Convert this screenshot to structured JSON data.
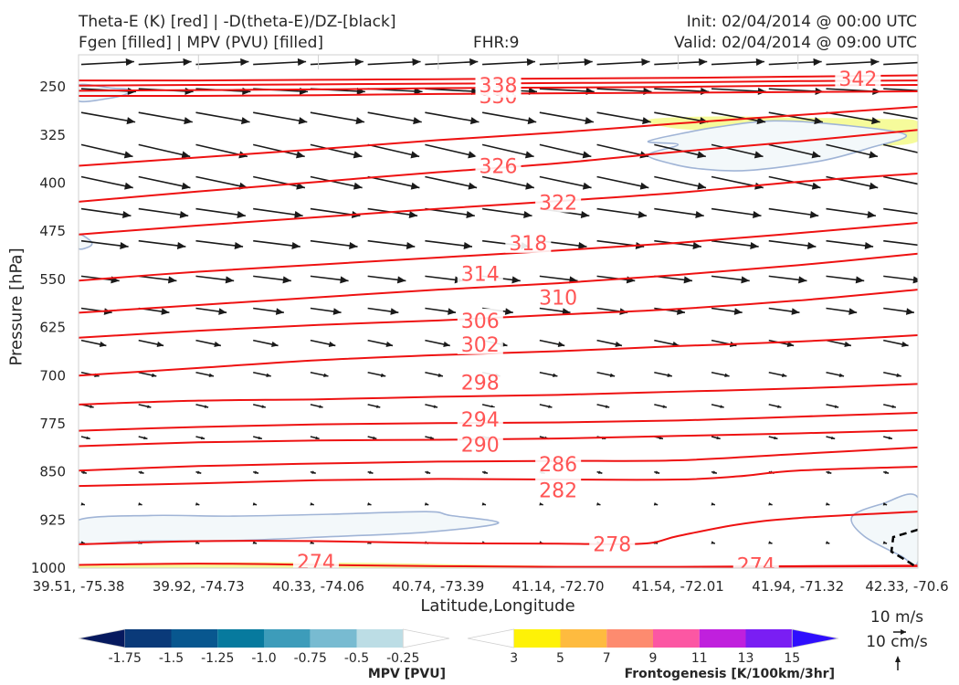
{
  "header": {
    "title_left_1": "Theta-E (K) [red] | -D(theta-E)/DZ-[black]",
    "title_left_2": "Fgen [filled] | MPV (PVU) [filled]",
    "fhr": "FHR:9",
    "init": "Init: 02/04/2014 @ 00:00 UTC",
    "valid": "Valid: 02/04/2014 @ 09:00 UTC"
  },
  "colors": {
    "theta_e": "#ee1111",
    "theta_e_label": "#ff5555",
    "vectors": "#1a1a1a",
    "mpv_outline": "#a0b4d6",
    "mpv_fill": "#f3f8fa"
  },
  "chart_data": {
    "type": "cross-section",
    "xlabel": "Latitude,Longitude",
    "ylabel": "Pressure [hPa]",
    "x_ticks": [
      "39.51, -75.38",
      "39.92, -74.73",
      "40.33, -74.06",
      "40.74, -73.39",
      "41.14, -72.70",
      "41.54, -72.01",
      "41.94, -71.32",
      "42.33, -70.6"
    ],
    "y_ticks": [
      250,
      325,
      400,
      475,
      550,
      625,
      700,
      775,
      850,
      925,
      1000
    ],
    "ylim": [
      1000,
      200
    ],
    "theta_e_contours": [
      {
        "level": "274",
        "points": [
          [
            0,
            995
          ],
          [
            1,
            993
          ],
          [
            2,
            995
          ],
          [
            3,
            997
          ],
          [
            4,
            998
          ],
          [
            5,
            998
          ],
          [
            6,
            997
          ],
          [
            7,
            996
          ]
        ],
        "label_x": 1.98,
        "label_y": 990
      },
      {
        "level": "274",
        "points": [
          [
            5.2,
            998
          ],
          [
            7,
            997
          ]
        ],
        "label_x": 5.65,
        "label_y": 995
      },
      {
        "level": "278",
        "points": [
          [
            0,
            963
          ],
          [
            1,
            958
          ],
          [
            2,
            958
          ],
          [
            3,
            961
          ],
          [
            4,
            962
          ],
          [
            4.7,
            962
          ],
          [
            5,
            950
          ],
          [
            5.5,
            932
          ],
          [
            6,
            922
          ],
          [
            7,
            912
          ]
        ],
        "label_x": 4.45,
        "label_y": 962
      },
      {
        "level": "282",
        "points": [
          [
            0,
            872
          ],
          [
            1,
            868
          ],
          [
            2,
            863
          ],
          [
            3,
            861
          ],
          [
            4,
            862
          ],
          [
            5,
            862
          ],
          [
            5.5,
            857
          ],
          [
            6,
            848
          ],
          [
            7,
            842
          ]
        ],
        "label_x": 4.0,
        "label_y": 878
      },
      {
        "level": "286",
        "points": [
          [
            0,
            848
          ],
          [
            1,
            841
          ],
          [
            2,
            837
          ],
          [
            3,
            834
          ],
          [
            4,
            833
          ],
          [
            5,
            832
          ],
          [
            6,
            822
          ],
          [
            7,
            812
          ]
        ],
        "label_x": 4.0,
        "label_y": 838
      },
      {
        "level": "290",
        "points": [
          [
            0,
            810
          ],
          [
            1,
            804
          ],
          [
            2,
            801
          ],
          [
            3,
            800
          ],
          [
            4,
            798
          ],
          [
            5,
            794
          ],
          [
            6,
            790
          ],
          [
            7,
            785
          ]
        ],
        "label_x": 3.35,
        "label_y": 807
      },
      {
        "level": "294",
        "points": [
          [
            0,
            786
          ],
          [
            1,
            780
          ],
          [
            2,
            776
          ],
          [
            3,
            774
          ],
          [
            4,
            773
          ],
          [
            5,
            770
          ],
          [
            6,
            764
          ],
          [
            7,
            758
          ]
        ],
        "label_x": 3.35,
        "label_y": 768
      },
      {
        "level": "298",
        "points": [
          [
            0,
            745
          ],
          [
            1,
            739
          ],
          [
            2,
            737
          ],
          [
            3,
            733
          ],
          [
            4,
            730
          ],
          [
            5,
            725
          ],
          [
            6,
            720
          ],
          [
            7,
            713
          ]
        ],
        "label_x": 3.35,
        "label_y": 710
      },
      {
        "level": "302",
        "points": [
          [
            0,
            700
          ],
          [
            1,
            688
          ],
          [
            2,
            676
          ],
          [
            3,
            668
          ],
          [
            4,
            662
          ],
          [
            5,
            654
          ],
          [
            6,
            647
          ],
          [
            7,
            637
          ]
        ],
        "label_x": 3.35,
        "label_y": 651
      },
      {
        "level": "306",
        "points": [
          [
            0,
            641
          ],
          [
            1,
            630
          ],
          [
            2,
            621
          ],
          [
            3,
            614
          ],
          [
            4,
            605
          ],
          [
            5,
            596
          ],
          [
            6,
            583
          ],
          [
            7,
            566
          ]
        ],
        "label_x": 3.35,
        "label_y": 614
      },
      {
        "level": "310",
        "points": [
          [
            0,
            602
          ],
          [
            1,
            590
          ],
          [
            2,
            578
          ],
          [
            3,
            566
          ],
          [
            4,
            556
          ],
          [
            5,
            543
          ],
          [
            6,
            528
          ],
          [
            7,
            510
          ]
        ],
        "label_x": 4.0,
        "label_y": 578
      },
      {
        "level": "314",
        "points": [
          [
            0,
            552
          ],
          [
            1,
            538
          ],
          [
            2,
            527
          ],
          [
            3,
            516
          ],
          [
            4,
            505
          ],
          [
            5,
            493
          ],
          [
            6,
            478
          ],
          [
            7,
            462
          ]
        ],
        "label_x": 3.35,
        "label_y": 541
      },
      {
        "level": "318",
        "points": [
          [
            0,
            480
          ],
          [
            1,
            466
          ],
          [
            2,
            453
          ],
          [
            3,
            440
          ],
          [
            4,
            428
          ],
          [
            5,
            415
          ],
          [
            6,
            398
          ],
          [
            7,
            385
          ]
        ],
        "label_x": 3.75,
        "label_y": 493
      },
      {
        "level": "322",
        "points": [
          [
            0,
            429
          ],
          [
            1,
            413
          ],
          [
            2,
            398
          ],
          [
            3,
            383
          ],
          [
            4,
            369
          ],
          [
            5,
            351
          ],
          [
            6,
            335
          ],
          [
            7,
            317
          ]
        ],
        "label_x": 4.0,
        "label_y": 430
      },
      {
        "level": "326",
        "points": [
          [
            0,
            373
          ],
          [
            1,
            360
          ],
          [
            2,
            347
          ],
          [
            3,
            333
          ],
          [
            4,
            321
          ],
          [
            5,
            307
          ],
          [
            6,
            294
          ],
          [
            7,
            281
          ]
        ],
        "label_x": 3.5,
        "label_y": 373
      },
      {
        "level": "330",
        "points": [
          [
            0,
            264
          ],
          [
            1,
            264
          ],
          [
            2,
            263
          ],
          [
            3,
            261
          ],
          [
            4,
            260
          ],
          [
            5,
            259
          ],
          [
            6,
            258
          ],
          [
            7,
            257
          ]
        ],
        "label_x": 3.5,
        "label_y": 264
      },
      {
        "level": "334",
        "points": [
          [
            0,
            256
          ],
          [
            1,
            255
          ],
          [
            2,
            254
          ],
          [
            3,
            252
          ],
          [
            4,
            251
          ],
          [
            5,
            250
          ],
          [
            6,
            248
          ],
          [
            7,
            247
          ]
        ],
        "label_x": 3.5,
        "label_y": 251
      },
      {
        "level": "338",
        "points": [
          [
            0,
            248
          ],
          [
            1,
            247
          ],
          [
            2,
            246
          ],
          [
            3,
            245
          ],
          [
            4,
            244
          ],
          [
            5,
            243
          ],
          [
            6,
            241
          ],
          [
            7,
            240
          ]
        ],
        "label_x": 3.5,
        "label_y": 247
      },
      {
        "level": "342",
        "points": [
          [
            0,
            240
          ],
          [
            1,
            240
          ],
          [
            2,
            239
          ],
          [
            3,
            238
          ],
          [
            4,
            237
          ],
          [
            5,
            236
          ],
          [
            6,
            234
          ],
          [
            7,
            232
          ]
        ],
        "label_x": 6.5,
        "label_y": 237
      }
    ],
    "mpv_regions": [
      {
        "points": [
          [
            0,
            247
          ],
          [
            0.28,
            252
          ],
          [
            0.42,
            254
          ],
          [
            0.4,
            261
          ],
          [
            0.25,
            268
          ],
          [
            0,
            272
          ]
        ]
      },
      {
        "points": [
          [
            4.75,
            335
          ],
          [
            5.1,
            320
          ],
          [
            5.35,
            312
          ],
          [
            5.8,
            303
          ],
          [
            6.4,
            310
          ],
          [
            6.9,
            325
          ],
          [
            6.6,
            345
          ],
          [
            6.2,
            365
          ],
          [
            5.6,
            380
          ],
          [
            5.2,
            378
          ],
          [
            4.95,
            370
          ],
          [
            4.75,
            356
          ],
          [
            5.0,
            340
          ]
        ]
      },
      {
        "points": [
          [
            0,
            925
          ],
          [
            0.6,
            918
          ],
          [
            1.3,
            919
          ],
          [
            2.1,
            916
          ],
          [
            2.9,
            912
          ],
          [
            3.1,
            918
          ],
          [
            3.5,
            930
          ],
          [
            2.9,
            944
          ],
          [
            2.1,
            951
          ],
          [
            1.3,
            957
          ],
          [
            0.5,
            958
          ],
          [
            0,
            960
          ]
        ]
      },
      {
        "points": [
          [
            0,
            480
          ],
          [
            0.1,
            490
          ],
          [
            0.1,
            498
          ],
          [
            0,
            502
          ]
        ]
      },
      {
        "points": [
          [
            7,
            890
          ],
          [
            6.7,
            900
          ],
          [
            6.45,
            920
          ],
          [
            6.55,
            950
          ],
          [
            6.85,
            980
          ],
          [
            7,
            990
          ]
        ]
      }
    ],
    "frontogenesis_regions": [
      {
        "points": [
          [
            4.75,
            301
          ],
          [
            5.3,
            296
          ],
          [
            6.0,
            298
          ],
          [
            6.7,
            300
          ],
          [
            7,
            304
          ],
          [
            7,
            335
          ],
          [
            6.6,
            342
          ],
          [
            6.0,
            336
          ],
          [
            5.5,
            322
          ],
          [
            4.95,
            314
          ]
        ]
      },
      {
        "points": [
          [
            0,
            994
          ],
          [
            1.5,
            991
          ],
          [
            2.5,
            992
          ],
          [
            3.4,
            995
          ],
          [
            4.2,
            997
          ],
          [
            4.6,
            999
          ],
          [
            3,
            1000
          ],
          [
            0,
            1000
          ]
        ]
      }
    ],
    "vector_field": {
      "cols": 15,
      "rows": [
        {
          "p": 215,
          "len": 58,
          "ang": -3
        },
        {
          "p": 253,
          "len": 60,
          "ang": 3
        },
        {
          "p": 290,
          "len": 60,
          "ang": 10
        },
        {
          "p": 340,
          "len": 58,
          "ang": 13
        },
        {
          "p": 390,
          "len": 58,
          "ang": 12
        },
        {
          "p": 440,
          "len": 55,
          "ang": 8
        },
        {
          "p": 490,
          "len": 52,
          "ang": 7
        },
        {
          "p": 545,
          "len": 42,
          "ang": 7
        },
        {
          "p": 595,
          "len": 34,
          "ang": 8
        },
        {
          "p": 645,
          "len": 28,
          "ang": 12
        },
        {
          "p": 695,
          "len": 20,
          "ang": 12
        },
        {
          "p": 745,
          "len": 14,
          "ang": 13
        },
        {
          "p": 795,
          "len": 10,
          "ang": 14
        },
        {
          "p": 850,
          "len": 6,
          "ang": 15
        },
        {
          "p": 900,
          "len": 4,
          "ang": 15
        },
        {
          "p": 960,
          "len": 4,
          "ang": 18
        }
      ]
    }
  },
  "colorbars": {
    "mpv": {
      "label": "MPV [PVU]",
      "ticks": [
        "-1.75",
        "-1.5",
        "-1.25",
        "-1.0",
        "-0.75",
        "-0.5",
        "-0.25"
      ],
      "colors": [
        "#06195e",
        "#0a3a79",
        "#08578f",
        "#077a9e",
        "#3d9cba",
        "#78bbd1",
        "#bcdde5",
        "#ffffff"
      ]
    },
    "fgen": {
      "label": "Frontogenesis [K/100km/3hr]",
      "ticks": [
        "3",
        "5",
        "7",
        "9",
        "11",
        "13",
        "15"
      ],
      "colors": [
        "#ffffff",
        "#fef207",
        "#febb3f",
        "#fd8b6f",
        "#fc57a3",
        "#c020dd",
        "#7a1ef3",
        "#2f0efd"
      ]
    }
  },
  "vector_key": {
    "wind": "10 m/s",
    "vertical": "10 cm/s"
  }
}
